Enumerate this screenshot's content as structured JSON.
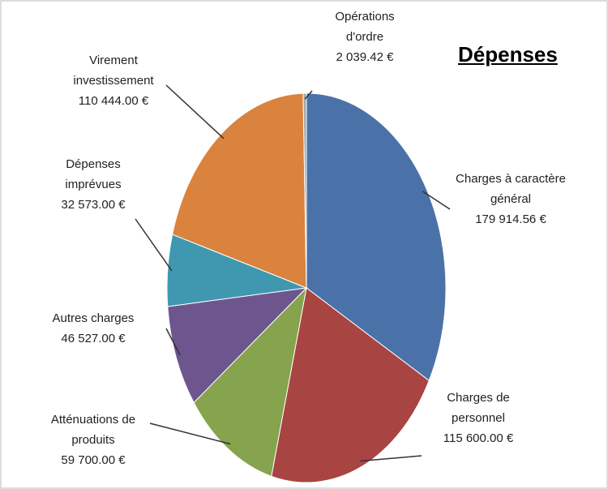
{
  "chart_data": {
    "type": "pie",
    "title": "Dépenses",
    "categories": [
      "Charges à caractère général",
      "Charges de personnel",
      "Atténuations de produits",
      "Autres charges",
      "Dépenses imprévues",
      "Virement investissement",
      "Opérations d'ordre"
    ],
    "values": [
      179914.56,
      115600.0,
      59700.0,
      46527.0,
      32573.0,
      110444.0,
      2039.42
    ],
    "value_labels": [
      "179 914.56 €",
      "115 600.00 €",
      "59 700.00 €",
      "46 527.00 €",
      "32 573.00 €",
      "110 444.00 €",
      "2 039.42 €"
    ],
    "colors": [
      "#4a72a8",
      "#a84543",
      "#86a34d",
      "#6d568e",
      "#3f98b0",
      "#d9833e",
      "#a6a6a6"
    ]
  }
}
